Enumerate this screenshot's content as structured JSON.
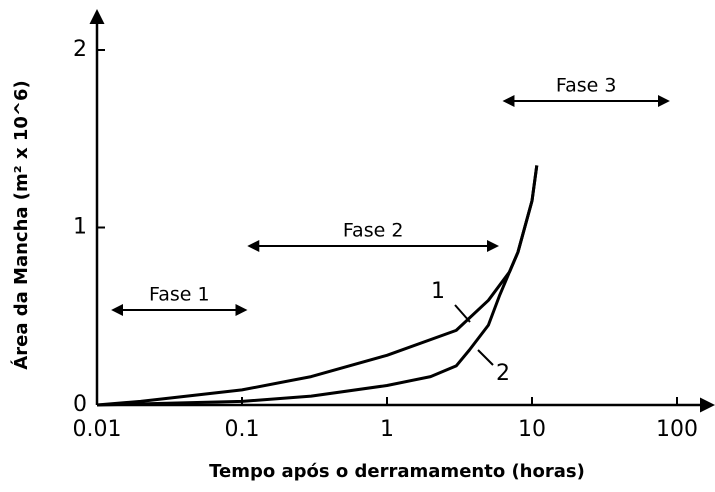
{
  "chart_data": {
    "type": "line",
    "xlabel": "Tempo após o derramamento (horas)",
    "ylabel": "Área da Mancha (m² x 10^6)",
    "xscale": "log",
    "xlim": [
      0.01,
      100
    ],
    "ylim": [
      0,
      2
    ],
    "xticks": [
      0.01,
      0.1,
      1,
      10,
      100
    ],
    "yticks": [
      0,
      1,
      2
    ],
    "grid": false,
    "series": [
      {
        "name": "1",
        "color": "#000000",
        "x": [
          0.01,
          0.02,
          0.1,
          0.3,
          1,
          3,
          5,
          7,
          8,
          10,
          10.8
        ],
        "values": [
          0,
          0.02,
          0.085,
          0.16,
          0.28,
          0.42,
          0.59,
          0.75,
          0.86,
          1.15,
          1.35
        ]
      },
      {
        "name": "2",
        "color": "#000000",
        "x": [
          0.01,
          0.1,
          0.3,
          1,
          2,
          3,
          3.7,
          5,
          6,
          7,
          8,
          10,
          10.8
        ],
        "values": [
          0,
          0.02,
          0.05,
          0.11,
          0.16,
          0.22,
          0.31,
          0.45,
          0.62,
          0.75,
          0.86,
          1.15,
          1.35
        ]
      }
    ],
    "phases": [
      {
        "label": "Fase 1",
        "range": [
          0.013,
          0.105
        ]
      },
      {
        "label": "Fase 2",
        "range": [
          0.113,
          5.7
        ]
      },
      {
        "label": "Fase 3",
        "range": [
          6.5,
          86
        ]
      }
    ]
  }
}
